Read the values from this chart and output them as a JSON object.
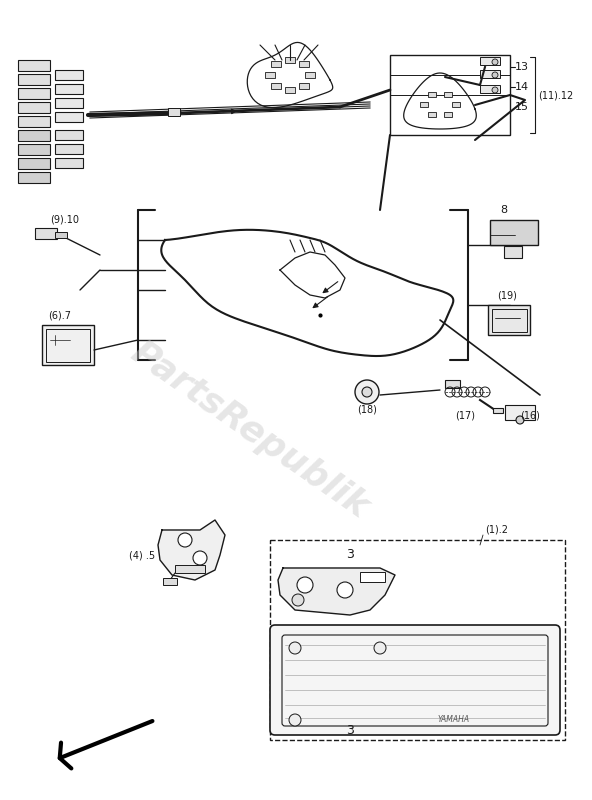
{
  "bg_color": "#ffffff",
  "line_color": "#1a1a1a",
  "watermark": "PartsRepublik",
  "figsize": [
    5.92,
    8.0
  ],
  "dpi": 100
}
